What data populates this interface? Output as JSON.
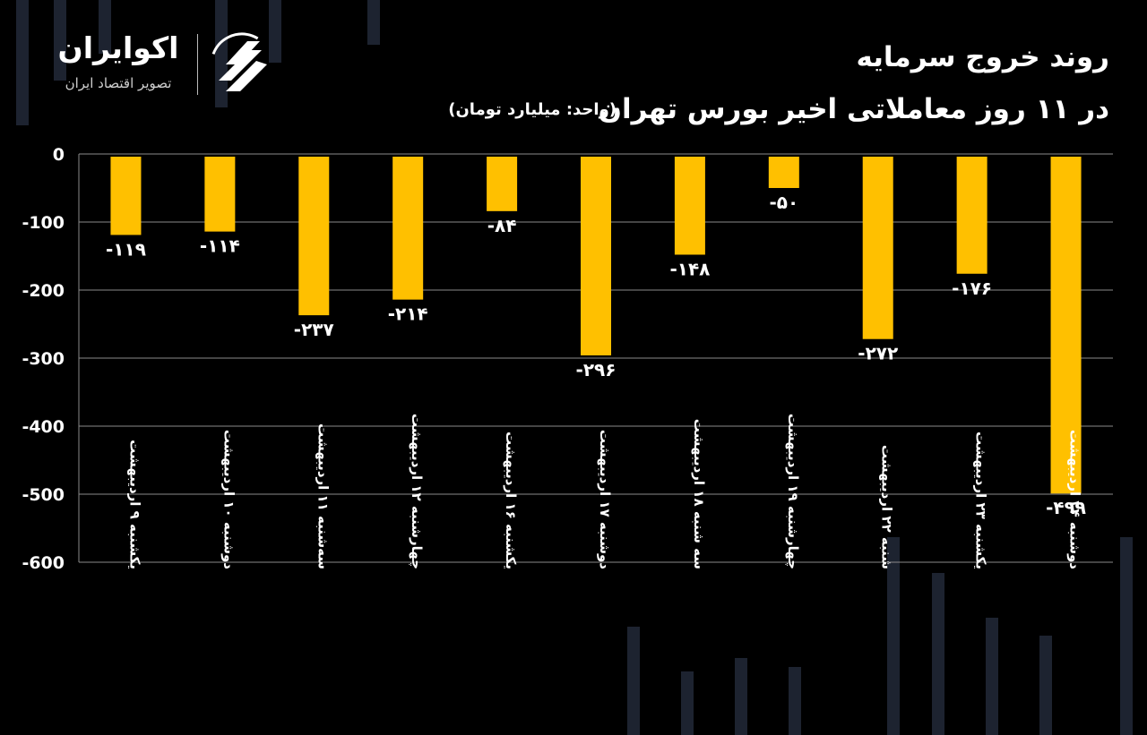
{
  "header": {
    "title_line1": "روند خروج سرمایه",
    "title_line2": "در ۱۱ روز معاملاتی اخیر بورس تهران",
    "unit_note": "(واحد: میلیارد تومان)"
  },
  "brand": {
    "name": "اکوایران",
    "tagline": "تصویر اقتصاد ایران",
    "logo_icon": "ecoiran-logo-icon"
  },
  "colors": {
    "background": "#000000",
    "bar": "#FFC000",
    "grid": "#8a8a8a",
    "text": "#ffffff"
  },
  "chart_data": {
    "type": "bar",
    "title": "روند خروج سرمایه در ۱۱ روز معاملاتی اخیر بورس تهران",
    "ylabel": "میلیارد تومان",
    "xlabel": "",
    "categories": [
      "یکشنبه ۹ اردیبهشت",
      "دوشنبه ۱۰ اردیبهشت",
      "سه‌شنبه ۱۱ اردیبهشت",
      "چهارشنبه ۱۲ اردیبهشت",
      "یکشنبه ۱۶ اردیبهشت",
      "دوشنبه ۱۷ اردیبهشت",
      "سه شنبه ۱۸ اردیبهشت",
      "چهارشنبه ۱۹ اردیبهشت",
      "شنبه ۲۲ اردیبهشت",
      "یکشنبه ۲۳ اردیبهشت",
      "دوشنبه ۲۴ اردیبهشت"
    ],
    "values": [
      -119,
      -114,
      -237,
      -214,
      -84,
      -296,
      -148,
      -50,
      -272,
      -176,
      -499
    ],
    "value_labels": [
      "-۱۱۹",
      "-۱۱۴",
      "-۲۳۷",
      "-۲۱۴",
      "-۸۴",
      "-۲۹۶",
      "-۱۴۸",
      "-۵۰",
      "-۲۷۲",
      "-۱۷۶",
      "-۴۹۹"
    ],
    "yticks": [
      0,
      -100,
      -200,
      -300,
      -400,
      -500,
      -600
    ],
    "ytick_labels": [
      "0",
      "-100",
      "-200",
      "-300",
      "-400",
      "-500",
      "-600"
    ],
    "ylim": [
      -600,
      0
    ],
    "grid": true,
    "legend": "none"
  }
}
